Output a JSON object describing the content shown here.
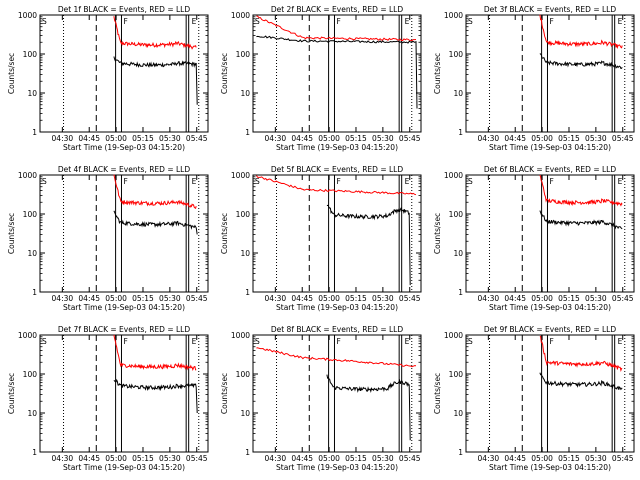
{
  "chart_data": [
    {
      "type": "line",
      "title": "Det 1f BLACK = Events, RED = LLD",
      "xlabel": "Start Time (19-Sep-03 04:15:20)",
      "ylabel": "Counts/sec",
      "y_scale": "log",
      "ylim": [
        1,
        1000
      ],
      "yticks": [
        "1",
        "10",
        "100",
        "1000"
      ],
      "xticks": [
        "04:30",
        "04:45",
        "05:00",
        "05:15",
        "05:30",
        "05:45"
      ],
      "markers": [
        "S",
        "F",
        "E"
      ],
      "series": [
        {
          "name": "RED = LLD",
          "color": "#ff0000",
          "shape": "a",
          "level_start": 900,
          "level_mid": 190,
          "level_end": 145
        },
        {
          "name": "BLACK = Events",
          "color": "#000000",
          "shape": "b",
          "level_start": 80,
          "level_mid": 58,
          "level_end": 55,
          "drop_to": 5
        }
      ]
    },
    {
      "type": "line",
      "title": "Det 2f BLACK = Events, RED = LLD",
      "xlabel": "Start Time (19-Sep-03 04:15:20)",
      "ylabel": "Counts/sec",
      "y_scale": "log",
      "ylim": [
        1,
        1000
      ],
      "yticks": [
        "1",
        "10",
        "100",
        "1000"
      ],
      "xticks": [
        "04:30",
        "04:45",
        "05:00",
        "05:15",
        "05:30",
        "05:45"
      ],
      "markers": [
        "S",
        "F",
        "E"
      ],
      "series": [
        {
          "name": "RED = LLD",
          "color": "#ff0000",
          "shape": "c",
          "level_start": 1000,
          "level_mid": 260,
          "level_end": 230
        },
        {
          "name": "BLACK = Events",
          "color": "#000000",
          "shape": "c2",
          "level_start": 300,
          "level_mid": 215,
          "level_end": 200,
          "drop_to": 4
        }
      ]
    },
    {
      "type": "line",
      "title": "Det 3f BLACK = Events, RED = LLD",
      "xlabel": "Start Time (19-Sep-03 04:15:20)",
      "ylabel": "Counts/sec",
      "y_scale": "log",
      "ylim": [
        1,
        1000
      ],
      "yticks": [
        "1",
        "10",
        "100",
        "1000"
      ],
      "xticks": [
        "04:30",
        "04:45",
        "05:00",
        "05:15",
        "05:30",
        "05:45"
      ],
      "markers": [
        "S",
        "F",
        "E"
      ],
      "series": [
        {
          "name": "RED = LLD",
          "color": "#ff0000",
          "shape": "a",
          "level_start": 1000,
          "level_mid": 200,
          "level_end": 150
        },
        {
          "name": "BLACK = Events",
          "color": "#000000",
          "shape": "b",
          "level_start": 100,
          "level_mid": 60,
          "level_end": 45
        }
      ]
    },
    {
      "type": "line",
      "title": "Det 4f BLACK = Events, RED = LLD",
      "xlabel": "Start Time (19-Sep-03 04:15:20)",
      "ylabel": "Counts/sec",
      "y_scale": "log",
      "ylim": [
        1,
        1000
      ],
      "yticks": [
        "1",
        "10",
        "100",
        "1000"
      ],
      "xticks": [
        "04:30",
        "04:45",
        "05:00",
        "05:15",
        "05:30",
        "05:45"
      ],
      "markers": [
        "S",
        "F",
        "E"
      ],
      "series": [
        {
          "name": "RED = LLD",
          "color": "#ff0000",
          "shape": "a",
          "level_start": 1000,
          "level_mid": 210,
          "level_end": 150
        },
        {
          "name": "BLACK = Events",
          "color": "#000000",
          "shape": "b",
          "level_start": 110,
          "level_mid": 60,
          "level_end": 45,
          "drop_to": 30
        }
      ]
    },
    {
      "type": "line",
      "title": "Det 5f BLACK = Events, RED = LLD",
      "xlabel": "Start Time (19-Sep-03 04:15:20)",
      "ylabel": "Counts/sec",
      "y_scale": "log",
      "ylim": [
        1,
        1000
      ],
      "yticks": [
        "1",
        "10",
        "100",
        "1000"
      ],
      "xticks": [
        "04:30",
        "04:45",
        "05:00",
        "05:15",
        "05:30",
        "05:45"
      ],
      "markers": [
        "S",
        "F",
        "E"
      ],
      "series": [
        {
          "name": "RED = LLD",
          "color": "#ff0000",
          "shape": "c",
          "level_start": 1000,
          "level_mid": 420,
          "level_end": 320
        },
        {
          "name": "BLACK = Events",
          "color": "#000000",
          "shape": "d",
          "level_start": 180,
          "level_mid": 95,
          "level_end": 100,
          "drop_to": 1.5
        }
      ]
    },
    {
      "type": "line",
      "title": "Det 6f BLACK = Events, RED = LLD",
      "xlabel": "Start Time (19-Sep-03 04:15:20)",
      "ylabel": "Counts/sec",
      "y_scale": "log",
      "ylim": [
        1,
        1000
      ],
      "yticks": [
        "1",
        "10",
        "100",
        "1000"
      ],
      "xticks": [
        "04:30",
        "04:45",
        "05:00",
        "05:15",
        "05:30",
        "05:45"
      ],
      "markers": [
        "S",
        "F",
        "E"
      ],
      "series": [
        {
          "name": "RED = LLD",
          "color": "#ff0000",
          "shape": "a",
          "level_start": 1000,
          "level_mid": 220,
          "level_end": 180
        },
        {
          "name": "BLACK = Events",
          "color": "#000000",
          "shape": "b",
          "level_start": 120,
          "level_mid": 65,
          "level_end": 40
        }
      ]
    },
    {
      "type": "line",
      "title": "Det 7f BLACK = Events, RED = LLD",
      "xlabel": "Start Time (19-Sep-03 04:15:20)",
      "ylabel": "Counts/sec",
      "y_scale": "log",
      "ylim": [
        1,
        1000
      ],
      "yticks": [
        "1",
        "10",
        "100",
        "1000"
      ],
      "xticks": [
        "04:30",
        "04:45",
        "05:00",
        "05:15",
        "05:30",
        "05:45"
      ],
      "markers": [
        "S",
        "F",
        "E"
      ],
      "series": [
        {
          "name": "RED = LLD",
          "color": "#ff0000",
          "shape": "a",
          "level_start": 1000,
          "level_mid": 170,
          "level_end": 140
        },
        {
          "name": "BLACK = Events",
          "color": "#000000",
          "shape": "b",
          "level_start": 75,
          "level_mid": 50,
          "level_end": 50,
          "drop_to": 10
        }
      ]
    },
    {
      "type": "line",
      "title": "Det 8f BLACK = Events, RED = LLD",
      "xlabel": "Start Time (19-Sep-03 04:15:20)",
      "ylabel": "Counts/sec",
      "y_scale": "log",
      "ylim": [
        1,
        1000
      ],
      "yticks": [
        "1",
        "10",
        "100",
        "1000"
      ],
      "xticks": [
        "04:30",
        "04:45",
        "05:00",
        "05:15",
        "05:30",
        "05:45"
      ],
      "markers": [
        "S",
        "F",
        "E"
      ],
      "series": [
        {
          "name": "RED = LLD",
          "color": "#ff0000",
          "shape": "c",
          "level_start": 500,
          "level_mid": 260,
          "level_end": 150
        },
        {
          "name": "BLACK = Events",
          "color": "#000000",
          "shape": "d",
          "level_start": 90,
          "level_mid": 45,
          "level_end": 50,
          "drop_to": 2
        }
      ]
    },
    {
      "type": "line",
      "title": "Det 9f BLACK = Events, RED = LLD",
      "xlabel": "Start Time (19-Sep-03 04:15:20)",
      "ylabel": "Counts/sec",
      "y_scale": "log",
      "ylim": [
        1,
        1000
      ],
      "yticks": [
        "1",
        "10",
        "100",
        "1000"
      ],
      "xticks": [
        "04:30",
        "04:45",
        "05:00",
        "05:15",
        "05:30",
        "05:45"
      ],
      "markers": [
        "S",
        "F",
        "E"
      ],
      "series": [
        {
          "name": "RED = LLD",
          "color": "#ff0000",
          "shape": "a",
          "level_start": 1000,
          "level_mid": 200,
          "level_end": 130
        },
        {
          "name": "BLACK = Events",
          "color": "#000000",
          "shape": "b",
          "level_start": 100,
          "level_mid": 60,
          "level_end": 40
        }
      ]
    }
  ]
}
